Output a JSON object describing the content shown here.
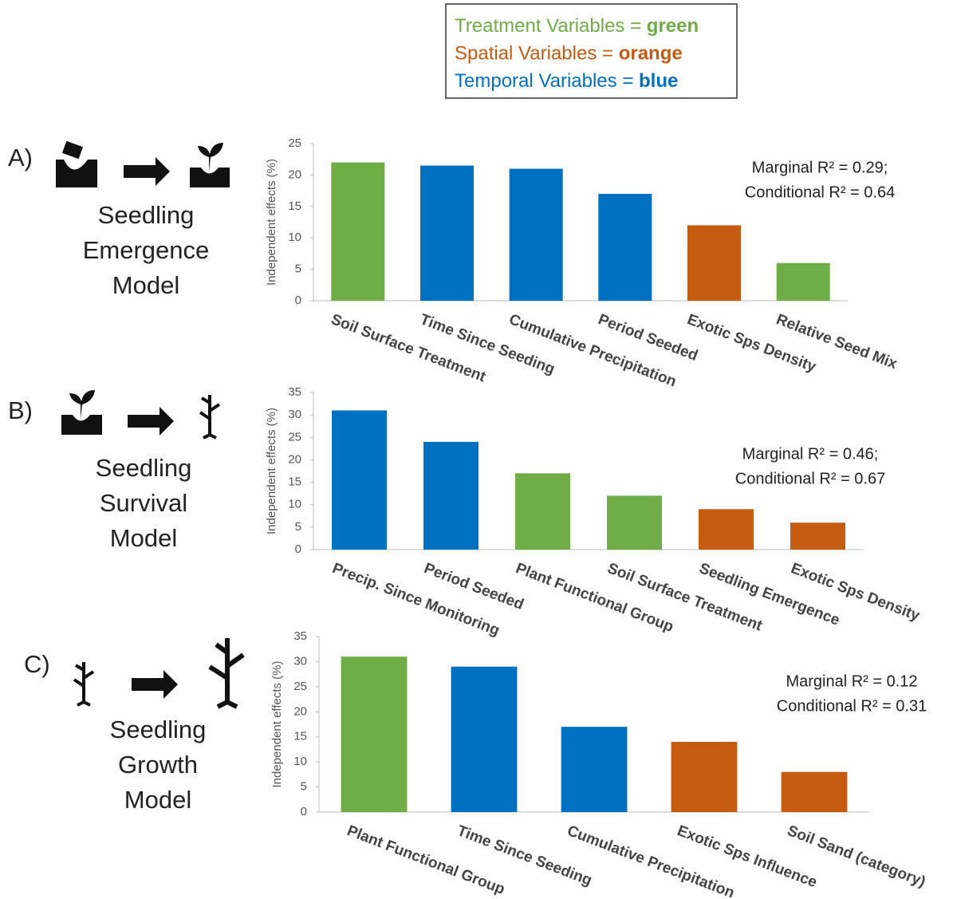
{
  "legend": [
    {
      "text": "Treatment Variables = ",
      "word": "green",
      "color": "#70ad47"
    },
    {
      "text": "Spatial Variables = ",
      "word": "orange",
      "color": "#c55a11"
    },
    {
      "text": "Temporal Variables = ",
      "word": "blue",
      "color": "#0070c0"
    }
  ],
  "chart_data": [
    {
      "type": "bar",
      "panel": "A)",
      "title": [
        "Seedling",
        "Emergence",
        "Model"
      ],
      "y_label": "Independent effects (%)",
      "annotation": [
        "Marginal R² = 0.29;",
        "Conditional R² = 0.64"
      ],
      "categories": [
        "Soil Surface Treatment",
        "Time Since Seeding",
        "Cumulative Precipitation",
        "Period Seeded",
        "Exotic Sps Density",
        "Relative Seed Mix"
      ],
      "values": [
        22,
        21.5,
        21,
        17,
        12,
        6
      ],
      "colors": [
        "#70ad47",
        "#0070c0",
        "#0070c0",
        "#0070c0",
        "#c55a11",
        "#70ad47"
      ],
      "ylim": [
        0,
        25
      ],
      "yticks": [
        0,
        5,
        10,
        15,
        20,
        25
      ],
      "grid": false
    },
    {
      "type": "bar",
      "panel": "B)",
      "title": [
        "Seedling",
        "Survival",
        "Model"
      ],
      "y_label": "Independent effects (%)",
      "annotation": [
        "Marginal R² = 0.46;",
        "Conditional R² = 0.67"
      ],
      "categories": [
        "Precip. Since Monitoring",
        "Period Seeded",
        "Plant Functional Group",
        "Soil Surface Treatment",
        "Seedling Emergence",
        "Exotic Sps Density"
      ],
      "values": [
        31,
        24,
        17,
        12,
        9,
        6
      ],
      "colors": [
        "#0070c0",
        "#0070c0",
        "#70ad47",
        "#70ad47",
        "#c55a11",
        "#c55a11"
      ],
      "ylim": [
        0,
        35
      ],
      "yticks": [
        0,
        5,
        10,
        15,
        20,
        25,
        30,
        35
      ],
      "grid": false
    },
    {
      "type": "bar",
      "panel": "C)",
      "title": [
        "Seedling",
        "Growth",
        "Model"
      ],
      "y_label": "Independent effects (%)",
      "annotation": [
        "Marginal R² = 0.12",
        "Conditional R² = 0.31"
      ],
      "categories": [
        "Plant Functional Group",
        "Time Since Seeding",
        "Cumulative Precipitation",
        "Exotic Sps Influence",
        "Soil Sand (category)"
      ],
      "values": [
        31,
        29,
        17,
        14,
        8
      ],
      "colors": [
        "#70ad47",
        "#0070c0",
        "#0070c0",
        "#c55a11",
        "#c55a11"
      ],
      "ylim": [
        0,
        35
      ],
      "yticks": [
        0,
        5,
        10,
        15,
        20,
        25,
        30,
        35
      ],
      "grid": false
    }
  ]
}
